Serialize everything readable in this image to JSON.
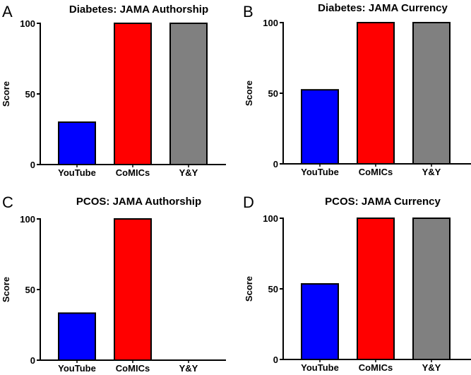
{
  "chart_data": [
    {
      "panel": "A",
      "type": "bar",
      "title": "Diabetes: JAMA Authorship",
      "ylabel": "Score",
      "xlabel": "",
      "ylim": [
        0,
        100
      ],
      "yticks": [
        0,
        50,
        100
      ],
      "categories": [
        "YouTube",
        "CoMICs",
        "Y&Y"
      ],
      "values": [
        30,
        100,
        100
      ],
      "colors": [
        "#0000ff",
        "#ff0000",
        "#808080"
      ]
    },
    {
      "panel": "B",
      "type": "bar",
      "title": "Diabetes: JAMA Currency",
      "ylabel": "Score",
      "xlabel": "",
      "ylim": [
        0,
        100
      ],
      "yticks": [
        0,
        50,
        100
      ],
      "categories": [
        "YouTube",
        "CoMICs",
        "Y&Y"
      ],
      "values": [
        52.4,
        100,
        100
      ],
      "colors": [
        "#0000ff",
        "#ff0000",
        "#808080"
      ]
    },
    {
      "panel": "C",
      "type": "bar",
      "title": "PCOS: JAMA Authorship",
      "ylabel": "Score",
      "xlabel": "",
      "ylim": [
        0,
        100
      ],
      "yticks": [
        0,
        50,
        100
      ],
      "categories": [
        "YouTube",
        "CoMICs",
        "Y&Y"
      ],
      "values": [
        33.3,
        100,
        0
      ],
      "colors": [
        "#0000ff",
        "#ff0000",
        "#808080"
      ]
    },
    {
      "panel": "D",
      "type": "bar",
      "title": "PCOS: JAMA Currency",
      "ylabel": "Score",
      "xlabel": "",
      "ylim": [
        0,
        100
      ],
      "yticks": [
        0,
        50,
        100
      ],
      "categories": [
        "YouTube",
        "CoMICs",
        "Y&Y"
      ],
      "values": [
        53.5,
        100,
        100
      ],
      "colors": [
        "#0000ff",
        "#ff0000",
        "#808080"
      ]
    }
  ]
}
